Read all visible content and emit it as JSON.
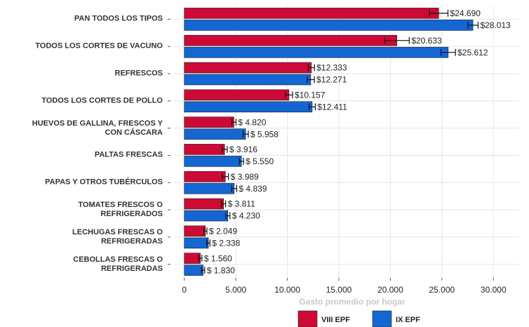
{
  "chart_data": {
    "type": "bar",
    "orientation": "horizontal",
    "x_label": "Gasto promedio por hogar",
    "categories": [
      "PAN TODOS LOS TIPOS",
      "TODOS LOS CORTES DE VACUNO",
      "REFRESCOS",
      "TODOS LOS CORTES DE POLLO",
      "HUEVOS DE GALLINA, FRESCOS Y\nCON CÁSCARA",
      "PALTAS FRESCAS",
      "PAPAS Y OTROS TUBÉRCULOS",
      "TOMATES FRESCOS O\nREFRIGERADOS",
      "LECHUGAS FRESCAS O\nREFRIGERADAS",
      "CEBOLLAS FRESCAS O\nREFRIGERADAS"
    ],
    "series": [
      {
        "name": "VIII EPF",
        "color": "#cc0a35",
        "values": [
          24690,
          20633,
          12333,
          10157,
          4820,
          3916,
          3989,
          3811,
          2049,
          1560
        ],
        "value_labels": [
          "$24.690",
          "$20.633",
          "$12.333",
          "$10.157",
          "$ 4.820",
          "$ 3.916",
          "$ 3.989",
          "$ 3.811",
          "$ 2.049",
          "$ 1.560"
        ],
        "errors": [
          900,
          1200,
          300,
          350,
          200,
          250,
          300,
          200,
          150,
          150
        ]
      },
      {
        "name": "IX EPF",
        "color": "#1466d2",
        "values": [
          28013,
          25612,
          12271,
          12411,
          5958,
          5550,
          4839,
          4230,
          2338,
          1830
        ],
        "value_labels": [
          "$28.013",
          "$25.612",
          "$12.271",
          "$12.411",
          "$ 5.958",
          "$ 5.550",
          "$ 4.839",
          "$ 4.230",
          "$ 2.338",
          "$ 1.830"
        ],
        "errors": [
          500,
          700,
          350,
          300,
          250,
          200,
          250,
          200,
          150,
          150
        ]
      }
    ],
    "xlim": [
      -1000,
      32500
    ],
    "xticks": [
      0,
      {
        "value": 5000,
        "label": "5.000"
      },
      {
        "value": 10000,
        "label": "10.000"
      },
      {
        "value": 15000,
        "label": "15.000"
      },
      {
        "value": 20000,
        "label": "20.000"
      },
      {
        "value": 25000,
        "label": "25.000"
      },
      {
        "value": 30000,
        "label": "30.000"
      }
    ],
    "grid": true,
    "legend": "bottom"
  }
}
